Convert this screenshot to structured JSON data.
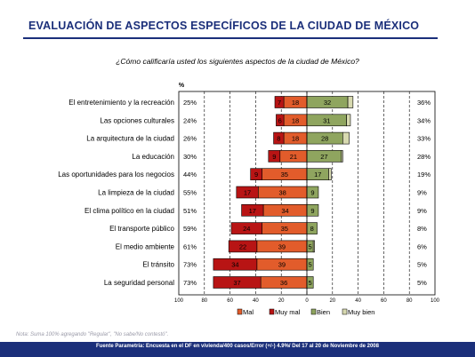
{
  "title": "EVALUACIÓN DE ASPECTOS ESPECÍFICOS DE LA CIUDAD DE MÉXICO",
  "subtitle": "¿Cómo calificaría usted los siguientes aspectos de la ciudad de México?",
  "percent_label": "%",
  "note": "Nota: Suma 100% agregando \"Regular\", \"No sabe/No contestó\".",
  "footer": "Fuente Parametría: Encuesta en el DF en vivienda/400 casos/Error (+/-) 4.9%/ Del 17 al 20 de Noviembre de 2008",
  "colors": {
    "mal": "#e25c2b",
    "muy_mal": "#b81414",
    "bien": "#8fa55f",
    "muy_bien": "#d7d9b0",
    "title": "#1b2f7a"
  },
  "chart_data": {
    "type": "bar",
    "orientation": "horizontal-diverging",
    "categories": [
      "El entretenimiento y la recreación",
      "Las opciones culturales",
      "La arquitectura  de la ciudad",
      "La educación",
      "Las oportunidades para los negocios",
      "La limpieza de la ciudad",
      "El clima político en la ciudad",
      "El transporte público",
      "El medio ambiente",
      "El tránsito",
      "La seguridad personal"
    ],
    "series": [
      {
        "name": "Mal",
        "values": [
          18,
          18,
          18,
          21,
          35,
          38,
          34,
          35,
          39,
          39,
          36
        ]
      },
      {
        "name": "Muy mal",
        "values": [
          7,
          6,
          8,
          9,
          9,
          17,
          17,
          24,
          22,
          34,
          37
        ]
      },
      {
        "name": "Bien",
        "values": [
          32,
          31,
          28,
          27,
          17,
          9,
          9,
          8,
          5,
          5,
          5
        ]
      },
      {
        "name": "Muy bien",
        "values": [
          4,
          3,
          5,
          1,
          2,
          0,
          0,
          0,
          1,
          0,
          0
        ]
      }
    ],
    "negative_totals": [
      "25%",
      "24%",
      "26%",
      "30%",
      "44%",
      "55%",
      "51%",
      "59%",
      "61%",
      "73%",
      "73%"
    ],
    "positive_totals": [
      "36%",
      "34%",
      "33%",
      "28%",
      "19%",
      "9%",
      "9%",
      "8%",
      "6%",
      "5%",
      "5%"
    ],
    "x_ticks": [
      "100",
      "80",
      "60",
      "40",
      "20",
      "0",
      "20",
      "40",
      "60",
      "80",
      "100"
    ],
    "xlim": [
      -100,
      100
    ],
    "legend": [
      "Mal",
      "Muy mal",
      "Bien",
      "Muy bien"
    ],
    "legend_position": "bottom",
    "grid": "vertical dashed"
  }
}
